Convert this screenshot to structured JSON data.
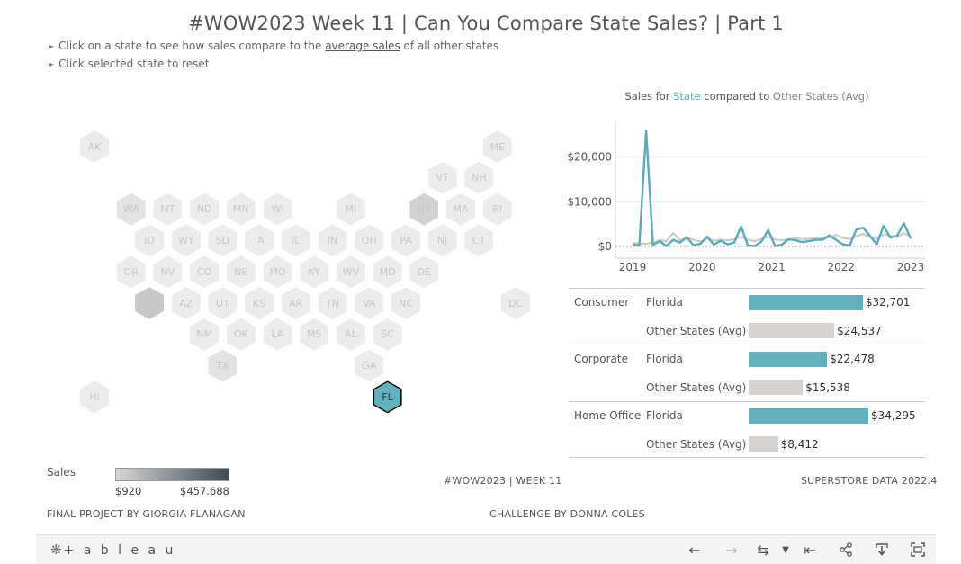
{
  "title": "#WOW2023 Week 11 | Can You Compare State Sales? | Part 1",
  "instructions": {
    "line1_before": "Click on a state to see how sales compare to the ",
    "line1_link": "average sales",
    "line1_after": " of all other states",
    "line2": "Click selected state to reset"
  },
  "hexmap": {
    "selected_state": "FL",
    "states": [
      {
        "abbr": "AK",
        "row": 0,
        "col": 0
      },
      {
        "abbr": "ME",
        "row": 0,
        "col": 11
      },
      {
        "abbr": "VT",
        "row": 1,
        "col": 9.5
      },
      {
        "abbr": "NH",
        "row": 1,
        "col": 10.5
      },
      {
        "abbr": "WA",
        "row": 2,
        "col": 1
      },
      {
        "abbr": "MT",
        "row": 2,
        "col": 2
      },
      {
        "abbr": "ND",
        "row": 2,
        "col": 3
      },
      {
        "abbr": "MN",
        "row": 2,
        "col": 4
      },
      {
        "abbr": "WI",
        "row": 2,
        "col": 5
      },
      {
        "abbr": "MI",
        "row": 2,
        "col": 7
      },
      {
        "abbr": "NY",
        "row": 2,
        "col": 9
      },
      {
        "abbr": "MA",
        "row": 2,
        "col": 10
      },
      {
        "abbr": "RI",
        "row": 2,
        "col": 11
      },
      {
        "abbr": "ID",
        "row": 3,
        "col": 1.5
      },
      {
        "abbr": "WY",
        "row": 3,
        "col": 2.5
      },
      {
        "abbr": "SD",
        "row": 3,
        "col": 3.5
      },
      {
        "abbr": "IA",
        "row": 3,
        "col": 4.5
      },
      {
        "abbr": "IL",
        "row": 3,
        "col": 5.5
      },
      {
        "abbr": "IN",
        "row": 3,
        "col": 6.5
      },
      {
        "abbr": "OH",
        "row": 3,
        "col": 7.5
      },
      {
        "abbr": "PA",
        "row": 3,
        "col": 8.5
      },
      {
        "abbr": "NJ",
        "row": 3,
        "col": 9.5
      },
      {
        "abbr": "CT",
        "row": 3,
        "col": 10.5
      },
      {
        "abbr": "OR",
        "row": 4,
        "col": 1
      },
      {
        "abbr": "NV",
        "row": 4,
        "col": 2
      },
      {
        "abbr": "CO",
        "row": 4,
        "col": 3
      },
      {
        "abbr": "NE",
        "row": 4,
        "col": 4
      },
      {
        "abbr": "MO",
        "row": 4,
        "col": 5
      },
      {
        "abbr": "KY",
        "row": 4,
        "col": 6
      },
      {
        "abbr": "WV",
        "row": 4,
        "col": 7
      },
      {
        "abbr": "MD",
        "row": 4,
        "col": 8
      },
      {
        "abbr": "DE",
        "row": 4,
        "col": 9
      },
      {
        "abbr": "CA",
        "row": 5,
        "col": 1.5
      },
      {
        "abbr": "AZ",
        "row": 5,
        "col": 2.5
      },
      {
        "abbr": "UT",
        "row": 5,
        "col": 3.5
      },
      {
        "abbr": "KS",
        "row": 5,
        "col": 4.5
      },
      {
        "abbr": "AR",
        "row": 5,
        "col": 5.5
      },
      {
        "abbr": "TN",
        "row": 5,
        "col": 6.5
      },
      {
        "abbr": "VA",
        "row": 5,
        "col": 7.5
      },
      {
        "abbr": "NC",
        "row": 5,
        "col": 8.5
      },
      {
        "abbr": "DC",
        "row": 5,
        "col": 11.5
      },
      {
        "abbr": "NM",
        "row": 6,
        "col": 3
      },
      {
        "abbr": "OK",
        "row": 6,
        "col": 4
      },
      {
        "abbr": "LA",
        "row": 6,
        "col": 5
      },
      {
        "abbr": "MS",
        "row": 6,
        "col": 6
      },
      {
        "abbr": "AL",
        "row": 6,
        "col": 7
      },
      {
        "abbr": "SC",
        "row": 6,
        "col": 8
      },
      {
        "abbr": "TX",
        "row": 7,
        "col": 3.5
      },
      {
        "abbr": "GA",
        "row": 7,
        "col": 7.5
      },
      {
        "abbr": "HI",
        "row": 8,
        "col": 0
      },
      {
        "abbr": "FL",
        "row": 8,
        "col": 8
      }
    ],
    "shaded": {
      "CA": "#c8c8c8",
      "NY": "#d2d2d2",
      "WA": "#e3e3e3",
      "TX": "#e3e3e3"
    }
  },
  "chart_data": [
    {
      "type": "line",
      "title_parts": [
        "Sales for ",
        "State",
        " compared to ",
        "Other States (Avg)"
      ],
      "x_ticks": [
        "2019",
        "2020",
        "2021",
        "2022",
        "2023"
      ],
      "y_ticks": [
        "$0",
        "$10,000",
        "$20,000"
      ],
      "ylim": [
        -1000,
        28000
      ],
      "x_range": [
        2019,
        2023
      ],
      "series": [
        {
          "name": "State",
          "color": "#5aaabb",
          "values": [
            400,
            200,
            26000,
            300,
            1200,
            100,
            1500,
            900,
            2000,
            300,
            600,
            2200,
            400,
            1300,
            500,
            900,
            4500,
            200,
            100,
            1100,
            3700,
            100,
            400,
            1600,
            1400,
            1000,
            1200,
            1500,
            1500,
            2500,
            1500,
            500,
            200,
            3800,
            4200,
            2400,
            500,
            4600,
            2000,
            2400,
            5200,
            1800
          ]
        },
        {
          "name": "Other States (Avg)",
          "color": "#cfcbc8",
          "values": [
            800,
            700,
            600,
            900,
            1400,
            1200,
            3000,
            1400,
            2000,
            1500,
            1100,
            1800,
            1300,
            1500,
            1400,
            1600,
            2200,
            1500,
            1200,
            1700,
            2100,
            1600,
            1400,
            1600,
            1800,
            1700,
            1700,
            1900,
            1800,
            2000,
            2600,
            1900,
            1700,
            2300,
            2800,
            2100,
            1900,
            2700,
            2400,
            2100,
            3000,
            2300
          ]
        }
      ]
    },
    {
      "type": "bar",
      "segments": [
        {
          "name": "Consumer",
          "state_label": "Florida",
          "state_value": 32701,
          "state_display": "$32,701",
          "avg_label": "Other States (Avg)",
          "avg_value": 24537,
          "avg_display": "$24,537"
        },
        {
          "name": "Corporate",
          "state_label": "Florida",
          "state_value": 22478,
          "state_display": "$22,478",
          "avg_label": "Other States (Avg)",
          "avg_value": 15538,
          "avg_display": "$15,538"
        },
        {
          "name": "Home Office",
          "state_label": "Florida",
          "state_value": 34295,
          "state_display": "$34,295",
          "avg_label": "Other States (Avg)",
          "avg_value": 8412,
          "avg_display": "$8,412"
        }
      ],
      "xlim": [
        0,
        34295
      ],
      "colors": {
        "state": "#63b0bf",
        "avg": "#d6d2cf"
      }
    }
  ],
  "legend": {
    "title": "Sales",
    "min": "$920",
    "max": "$457.688"
  },
  "footer": {
    "wow": "#WOW2023 | WEEK 11",
    "data": "SUPERSTORE DATA 2022.4",
    "author": "FINAL PROJECT BY GIORGIA FLANAGAN",
    "challenge": "CHALLENGE BY DONNA COLES"
  },
  "toolbar": {
    "logo_text": "+ a b l e a u",
    "icons": [
      "undo-icon",
      "redo-icon",
      "revert-icon",
      "pause-updates-icon",
      "revert-all-icon",
      "share-icon",
      "download-icon",
      "fullscreen-icon"
    ]
  }
}
